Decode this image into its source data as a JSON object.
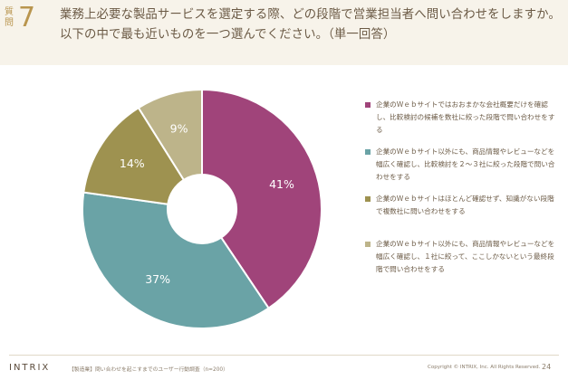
{
  "header": {
    "question_label": "質問",
    "question_number": "7",
    "question_text": "業務上必要な製品サービスを選定する際、どの段階で営業担当者へ問い合わせをしますか。以下の中で最も近いものを一つ選んでください。（単一回答）"
  },
  "chart_data": {
    "type": "pie",
    "donut": true,
    "start_angle_deg": 0,
    "direction": "clockwise",
    "slices": [
      {
        "label": "企業のＷｅｂサイトではおおまかな会社概要だけを確認し、比較検討の候補を数社に絞った段階で問い合わせをする",
        "value": 41,
        "display": "41%",
        "color": "#a0447a"
      },
      {
        "label": "企業のＷｅｂサイト以外にも、商品情報やレビューなどを幅広く確認し、比較検討を２～３社に絞った段階で問い合わせをする",
        "value": 37,
        "display": "37%",
        "color": "#6aa3a6"
      },
      {
        "label": "企業のＷｅｂサイトはほとんど確認せず、知識がない段階で複数社に問い合わせをする",
        "value": 14,
        "display": "14%",
        "color": "#9e9250"
      },
      {
        "label": "企業のＷｅｂサイト以外にも、商品情報やレビューなどを幅広く確認し、１社に絞って、ここしかないという最終段階で問い合わせをする",
        "value": 9,
        "display": "9%",
        "color": "#bdb48a"
      }
    ]
  },
  "footer": {
    "logo": "INTRIX",
    "source": "【製造業】問い合わせを起こすまでのユーザー行動調査（n=200）",
    "copyright": "Copyright © INTRIX, Inc. All Rights Reserved.",
    "page": "24"
  }
}
